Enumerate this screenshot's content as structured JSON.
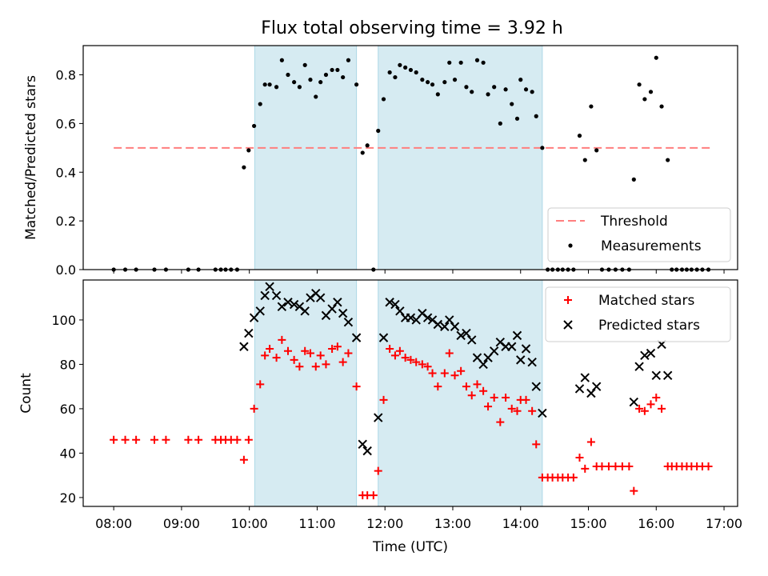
{
  "title": "Flux total observing time = 3.92 h",
  "colors": {
    "shade": "#add8e6",
    "threshold": "#ff7f7f",
    "measurement": "#000000",
    "matched": "#ff0000",
    "predicted": "#000000"
  },
  "chart_data": [
    {
      "type": "scatter",
      "ylabel": "Matched/Predicted stars",
      "xlim": [
        7.55,
        17.2
      ],
      "ylim": [
        0,
        0.92
      ],
      "yticks": [
        0.0,
        0.2,
        0.4,
        0.6,
        0.8
      ],
      "ytick_labels": [
        "0.0",
        "0.2",
        "0.4",
        "0.6",
        "0.8"
      ],
      "shaded_intervals": [
        [
          10.08,
          11.58
        ],
        [
          11.9,
          14.32
        ]
      ],
      "threshold": {
        "label": "Threshold",
        "y": 0.5,
        "x_range": [
          8.0,
          16.8
        ]
      },
      "legend": {
        "location": "lower right",
        "entries": [
          "Threshold",
          "Measurements"
        ]
      },
      "series": [
        {
          "name": "Measurements",
          "points": [
            [
              8.0,
              0
            ],
            [
              8.17,
              0
            ],
            [
              8.33,
              0
            ],
            [
              8.6,
              0
            ],
            [
              8.77,
              0
            ],
            [
              9.1,
              0
            ],
            [
              9.25,
              0
            ],
            [
              9.5,
              0
            ],
            [
              9.58,
              0
            ],
            [
              9.65,
              0
            ],
            [
              9.73,
              0
            ],
            [
              9.82,
              0
            ],
            [
              9.92,
              0.42
            ],
            [
              9.99,
              0.49
            ],
            [
              10.07,
              0.59
            ],
            [
              10.16,
              0.68
            ],
            [
              10.23,
              0.76
            ],
            [
              10.3,
              0.76
            ],
            [
              10.4,
              0.75
            ],
            [
              10.48,
              0.86
            ],
            [
              10.57,
              0.8
            ],
            [
              10.66,
              0.77
            ],
            [
              10.74,
              0.75
            ],
            [
              10.82,
              0.84
            ],
            [
              10.9,
              0.78
            ],
            [
              10.98,
              0.71
            ],
            [
              11.05,
              0.77
            ],
            [
              11.13,
              0.8
            ],
            [
              11.22,
              0.82
            ],
            [
              11.3,
              0.82
            ],
            [
              11.38,
              0.79
            ],
            [
              11.46,
              0.86
            ],
            [
              11.58,
              0.76
            ],
            [
              11.67,
              0.48
            ],
            [
              11.74,
              0.51
            ],
            [
              11.83,
              0
            ],
            [
              11.9,
              0.57
            ],
            [
              11.98,
              0.7
            ],
            [
              12.07,
              0.81
            ],
            [
              12.15,
              0.79
            ],
            [
              12.22,
              0.84
            ],
            [
              12.3,
              0.83
            ],
            [
              12.38,
              0.82
            ],
            [
              12.46,
              0.81
            ],
            [
              12.55,
              0.78
            ],
            [
              12.63,
              0.77
            ],
            [
              12.7,
              0.76
            ],
            [
              12.78,
              0.72
            ],
            [
              12.88,
              0.77
            ],
            [
              12.95,
              0.85
            ],
            [
              13.03,
              0.78
            ],
            [
              13.12,
              0.85
            ],
            [
              13.2,
              0.75
            ],
            [
              13.28,
              0.73
            ],
            [
              13.36,
              0.86
            ],
            [
              13.45,
              0.85
            ],
            [
              13.52,
              0.72
            ],
            [
              13.61,
              0.75
            ],
            [
              13.7,
              0.6
            ],
            [
              13.78,
              0.74
            ],
            [
              13.87,
              0.68
            ],
            [
              13.95,
              0.62
            ],
            [
              14.0,
              0.78
            ],
            [
              14.08,
              0.74
            ],
            [
              14.17,
              0.73
            ],
            [
              14.23,
              0.63
            ],
            [
              14.32,
              0.5
            ],
            [
              14.4,
              0
            ],
            [
              14.47,
              0
            ],
            [
              14.55,
              0
            ],
            [
              14.62,
              0
            ],
            [
              14.7,
              0
            ],
            [
              14.78,
              0
            ],
            [
              14.87,
              0.55
            ],
            [
              14.95,
              0.45
            ],
            [
              15.04,
              0.67
            ],
            [
              15.12,
              0.49
            ],
            [
              15.2,
              0
            ],
            [
              15.3,
              0
            ],
            [
              15.4,
              0
            ],
            [
              15.5,
              0
            ],
            [
              15.6,
              0
            ],
            [
              15.67,
              0.37
            ],
            [
              15.75,
              0.76
            ],
            [
              15.83,
              0.7
            ],
            [
              15.92,
              0.73
            ],
            [
              16.0,
              0.87
            ],
            [
              16.08,
              0.67
            ],
            [
              16.17,
              0.45
            ],
            [
              16.23,
              0
            ],
            [
              16.3,
              0
            ],
            [
              16.38,
              0
            ],
            [
              16.45,
              0
            ],
            [
              16.52,
              0
            ],
            [
              16.6,
              0
            ],
            [
              16.68,
              0
            ],
            [
              16.77,
              0
            ]
          ]
        }
      ]
    },
    {
      "type": "scatter",
      "ylabel": "Count",
      "xlabel": "Time (UTC)",
      "xlim": [
        7.55,
        17.2
      ],
      "ylim": [
        16,
        118
      ],
      "yticks": [
        20,
        40,
        60,
        80,
        100
      ],
      "ytick_labels": [
        "20",
        "40",
        "60",
        "80",
        "100"
      ],
      "xticks": [
        8,
        9,
        10,
        11,
        12,
        13,
        14,
        15,
        16,
        17
      ],
      "xtick_labels": [
        "08:00",
        "09:00",
        "10:00",
        "11:00",
        "12:00",
        "13:00",
        "14:00",
        "15:00",
        "16:00",
        "17:00"
      ],
      "shaded_intervals": [
        [
          10.08,
          11.58
        ],
        [
          11.9,
          14.32
        ]
      ],
      "legend": {
        "location": "upper right",
        "entries": [
          "Matched stars",
          "Predicted stars"
        ]
      },
      "series": [
        {
          "name": "Matched stars",
          "marker": "plus",
          "points": [
            [
              8.0,
              46
            ],
            [
              8.17,
              46
            ],
            [
              8.33,
              46
            ],
            [
              8.6,
              46
            ],
            [
              8.77,
              46
            ],
            [
              9.1,
              46
            ],
            [
              9.25,
              46
            ],
            [
              9.5,
              46
            ],
            [
              9.58,
              46
            ],
            [
              9.65,
              46
            ],
            [
              9.73,
              46
            ],
            [
              9.82,
              46
            ],
            [
              9.92,
              37
            ],
            [
              9.99,
              46
            ],
            [
              10.07,
              60
            ],
            [
              10.16,
              71
            ],
            [
              10.23,
              84
            ],
            [
              10.3,
              87
            ],
            [
              10.4,
              83
            ],
            [
              10.48,
              91
            ],
            [
              10.57,
              86
            ],
            [
              10.66,
              82
            ],
            [
              10.74,
              79
            ],
            [
              10.82,
              86
            ],
            [
              10.9,
              85
            ],
            [
              10.98,
              79
            ],
            [
              11.05,
              84
            ],
            [
              11.13,
              80
            ],
            [
              11.22,
              87
            ],
            [
              11.3,
              88
            ],
            [
              11.38,
              81
            ],
            [
              11.46,
              85
            ],
            [
              11.58,
              70
            ],
            [
              11.67,
              21
            ],
            [
              11.74,
              21
            ],
            [
              11.83,
              21
            ],
            [
              11.9,
              32
            ],
            [
              11.98,
              64
            ],
            [
              12.07,
              87
            ],
            [
              12.15,
              84
            ],
            [
              12.22,
              86
            ],
            [
              12.3,
              83
            ],
            [
              12.38,
              82
            ],
            [
              12.46,
              81
            ],
            [
              12.55,
              80
            ],
            [
              12.63,
              79
            ],
            [
              12.7,
              76
            ],
            [
              12.78,
              70
            ],
            [
              12.88,
              76
            ],
            [
              12.95,
              85
            ],
            [
              13.03,
              75
            ],
            [
              13.12,
              77
            ],
            [
              13.2,
              70
            ],
            [
              13.28,
              66
            ],
            [
              13.36,
              71
            ],
            [
              13.45,
              68
            ],
            [
              13.52,
              61
            ],
            [
              13.61,
              65
            ],
            [
              13.7,
              54
            ],
            [
              13.78,
              65
            ],
            [
              13.87,
              60
            ],
            [
              13.95,
              59
            ],
            [
              14.0,
              64
            ],
            [
              14.08,
              64
            ],
            [
              14.17,
              59
            ],
            [
              14.23,
              44
            ],
            [
              14.32,
              29
            ],
            [
              14.4,
              29
            ],
            [
              14.47,
              29
            ],
            [
              14.55,
              29
            ],
            [
              14.62,
              29
            ],
            [
              14.7,
              29
            ],
            [
              14.78,
              29
            ],
            [
              14.87,
              38
            ],
            [
              14.95,
              33
            ],
            [
              15.04,
              45
            ],
            [
              15.12,
              34
            ],
            [
              15.2,
              34
            ],
            [
              15.3,
              34
            ],
            [
              15.4,
              34
            ],
            [
              15.5,
              34
            ],
            [
              15.6,
              34
            ],
            [
              15.67,
              23
            ],
            [
              15.75,
              60
            ],
            [
              15.83,
              59
            ],
            [
              15.92,
              62
            ],
            [
              16.0,
              65
            ],
            [
              16.08,
              60
            ],
            [
              16.17,
              34
            ],
            [
              16.23,
              34
            ],
            [
              16.3,
              34
            ],
            [
              16.38,
              34
            ],
            [
              16.45,
              34
            ],
            [
              16.52,
              34
            ],
            [
              16.6,
              34
            ],
            [
              16.68,
              34
            ],
            [
              16.77,
              34
            ]
          ]
        },
        {
          "name": "Predicted stars",
          "marker": "x",
          "points": [
            [
              9.92,
              88
            ],
            [
              9.99,
              94
            ],
            [
              10.07,
              101
            ],
            [
              10.16,
              104
            ],
            [
              10.23,
              111
            ],
            [
              10.3,
              115
            ],
            [
              10.4,
              111
            ],
            [
              10.48,
              106
            ],
            [
              10.57,
              108
            ],
            [
              10.66,
              107
            ],
            [
              10.74,
              106
            ],
            [
              10.82,
              104
            ],
            [
              10.9,
              110
            ],
            [
              10.98,
              112
            ],
            [
              11.05,
              110
            ],
            [
              11.13,
              102
            ],
            [
              11.22,
              105
            ],
            [
              11.3,
              108
            ],
            [
              11.38,
              103
            ],
            [
              11.46,
              99
            ],
            [
              11.58,
              92
            ],
            [
              11.67,
              44
            ],
            [
              11.74,
              41
            ],
            [
              11.9,
              56
            ],
            [
              11.98,
              92
            ],
            [
              12.07,
              108
            ],
            [
              12.15,
              107
            ],
            [
              12.22,
              104
            ],
            [
              12.3,
              101
            ],
            [
              12.38,
              101
            ],
            [
              12.46,
              100
            ],
            [
              12.55,
              103
            ],
            [
              12.63,
              101
            ],
            [
              12.7,
              100
            ],
            [
              12.78,
              98
            ],
            [
              12.88,
              97
            ],
            [
              12.95,
              100
            ],
            [
              13.03,
              97
            ],
            [
              13.12,
              93
            ],
            [
              13.2,
              94
            ],
            [
              13.28,
              91
            ],
            [
              13.36,
              83
            ],
            [
              13.45,
              80
            ],
            [
              13.52,
              83
            ],
            [
              13.61,
              86
            ],
            [
              13.7,
              90
            ],
            [
              13.78,
              88
            ],
            [
              13.87,
              88
            ],
            [
              13.95,
              93
            ],
            [
              14.0,
              82
            ],
            [
              14.08,
              87
            ],
            [
              14.17,
              81
            ],
            [
              14.23,
              70
            ],
            [
              14.32,
              58
            ],
            [
              14.87,
              69
            ],
            [
              14.95,
              74
            ],
            [
              15.04,
              67
            ],
            [
              15.12,
              70
            ],
            [
              15.67,
              63
            ],
            [
              15.75,
              79
            ],
            [
              15.83,
              84
            ],
            [
              15.92,
              85
            ],
            [
              16.0,
              75
            ],
            [
              16.08,
              89
            ],
            [
              16.17,
              75
            ]
          ]
        }
      ]
    }
  ]
}
